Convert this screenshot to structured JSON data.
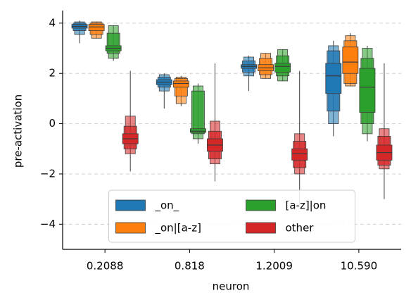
{
  "chart_data": {
    "type": "boxen",
    "xlabel": "neuron",
    "ylabel": "pre-activation",
    "categories": [
      "0.2088",
      "0.818",
      "1.2009",
      "10.590"
    ],
    "ylim": [
      -5,
      4.5
    ],
    "yticks": [
      {
        "value": -4,
        "label": "−4"
      },
      {
        "value": -2,
        "label": "−2"
      },
      0,
      2,
      4
    ],
    "grid": true,
    "legend": "lower center",
    "series": [
      {
        "name": "_on_",
        "color": "#1f77b4",
        "boxes": [
          {
            "levels": [
              [
                3.8,
                3.95
              ],
              [
                3.7,
                4.0
              ],
              [
                3.55,
                4.05
              ]
            ],
            "median": 3.87,
            "min": 3.2,
            "max": 4.1
          },
          {
            "levels": [
              [
                1.55,
                1.75
              ],
              [
                1.45,
                1.85
              ],
              [
                1.3,
                1.95
              ]
            ],
            "median": 1.65,
            "min": 0.6,
            "max": 2.0
          },
          {
            "levels": [
              [
                2.2,
                2.35
              ],
              [
                2.05,
                2.5
              ],
              [
                1.9,
                2.65
              ]
            ],
            "median": 2.28,
            "min": 1.3,
            "max": 2.7
          },
          {
            "levels": [
              [
                1.2,
                2.4
              ],
              [
                0.5,
                2.9
              ],
              [
                0.0,
                3.1
              ]
            ],
            "median": 1.9,
            "min": -0.5,
            "max": 3.3
          }
        ]
      },
      {
        "name": "_on|[a-z]",
        "color": "#ff7f0e",
        "boxes": [
          {
            "levels": [
              [
                3.7,
                3.95
              ],
              [
                3.55,
                4.0
              ],
              [
                3.4,
                4.05
              ]
            ],
            "median": 3.85,
            "min": 3.4,
            "max": 4.05
          },
          {
            "levels": [
              [
                1.45,
                1.7
              ],
              [
                1.1,
                1.8
              ],
              [
                0.8,
                1.85
              ]
            ],
            "median": 1.6,
            "min": 0.7,
            "max": 1.9
          },
          {
            "levels": [
              [
                2.1,
                2.35
              ],
              [
                1.95,
                2.6
              ],
              [
                1.8,
                2.8
              ]
            ],
            "median": 2.22,
            "min": 1.8,
            "max": 2.8
          },
          {
            "levels": [
              [
                2.0,
                3.05
              ],
              [
                1.6,
                3.3
              ],
              [
                1.5,
                3.5
              ]
            ],
            "median": 2.45,
            "min": 1.5,
            "max": 3.6
          }
        ]
      },
      {
        "name": "[a-z]|on",
        "color": "#2ca02c",
        "boxes": [
          {
            "levels": [
              [
                2.9,
                3.1
              ],
              [
                2.8,
                3.6
              ],
              [
                2.6,
                3.9
              ]
            ],
            "median": 3.0,
            "min": 2.5,
            "max": 3.9
          },
          {
            "levels": [
              [
                -0.35,
                -0.2
              ],
              [
                -0.4,
                1.3
              ],
              [
                -0.6,
                1.5
              ]
            ],
            "median": -0.3,
            "min": -0.8,
            "max": 1.6
          },
          {
            "levels": [
              [
                2.05,
                2.4
              ],
              [
                1.9,
                2.7
              ],
              [
                1.7,
                2.95
              ]
            ],
            "median": 2.28,
            "min": 1.7,
            "max": 2.95
          },
          {
            "levels": [
              [
                0.45,
                2.2
              ],
              [
                0.0,
                2.6
              ],
              [
                -0.4,
                3.0
              ]
            ],
            "median": 1.45,
            "min": -0.7,
            "max": 3.1
          }
        ]
      },
      {
        "name": "other",
        "color": "#d62728",
        "boxes": [
          {
            "levels": [
              [
                -0.8,
                -0.4
              ],
              [
                -1.0,
                -0.1
              ],
              [
                -1.2,
                0.3
              ]
            ],
            "median": -0.6,
            "min": -1.9,
            "max": 2.1
          },
          {
            "levels": [
              [
                -1.1,
                -0.6
              ],
              [
                -1.4,
                -0.3
              ],
              [
                -1.6,
                0.1
              ]
            ],
            "median": -0.85,
            "min": -2.3,
            "max": 2.4
          },
          {
            "levels": [
              [
                -1.45,
                -1.0
              ],
              [
                -1.75,
                -0.7
              ],
              [
                -2.0,
                -0.4
              ]
            ],
            "median": -1.2,
            "min": -3.2,
            "max": 2.1
          },
          {
            "levels": [
              [
                -1.45,
                -0.85
              ],
              [
                -1.65,
                -0.5
              ],
              [
                -1.8,
                -0.2
              ]
            ],
            "median": -1.15,
            "min": -3.0,
            "max": 2.4
          }
        ]
      }
    ]
  }
}
